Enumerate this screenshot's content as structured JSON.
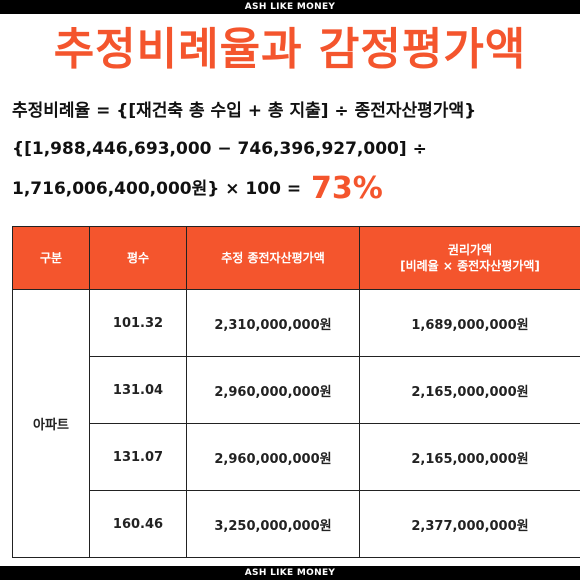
{
  "brand": "ASH LIKE MONEY",
  "title": "추정비례율과 감정평가액",
  "formula": {
    "line1": "추정비례율 = {[재건축 총 수입 + 총 지출] ÷ 종전자산평가액}",
    "line2": "{[1,988,446,693,000  − 746,396,927,000]  ÷",
    "line3_prefix": "1,716,006,400,000원} × 100 = ",
    "result": "73%"
  },
  "table": {
    "headers": [
      "구분",
      "평수",
      "추정 종전자산평가액",
      "권리가액"
    ],
    "header_sub": "[비례율 × 종전자산평가액]",
    "category": "아파트",
    "rows": [
      {
        "size": "101.32",
        "prior": "2,310,000,000원",
        "rights": "1,689,000,000원"
      },
      {
        "size": "131.04",
        "prior": "2,960,000,000원",
        "rights": "2,165,000,000원"
      },
      {
        "size": "131.07",
        "prior": "2,960,000,000원",
        "rights": "2,165,000,000원"
      },
      {
        "size": "160.46",
        "prior": "3,250,000,000원",
        "rights": "2,377,000,000원"
      }
    ]
  }
}
